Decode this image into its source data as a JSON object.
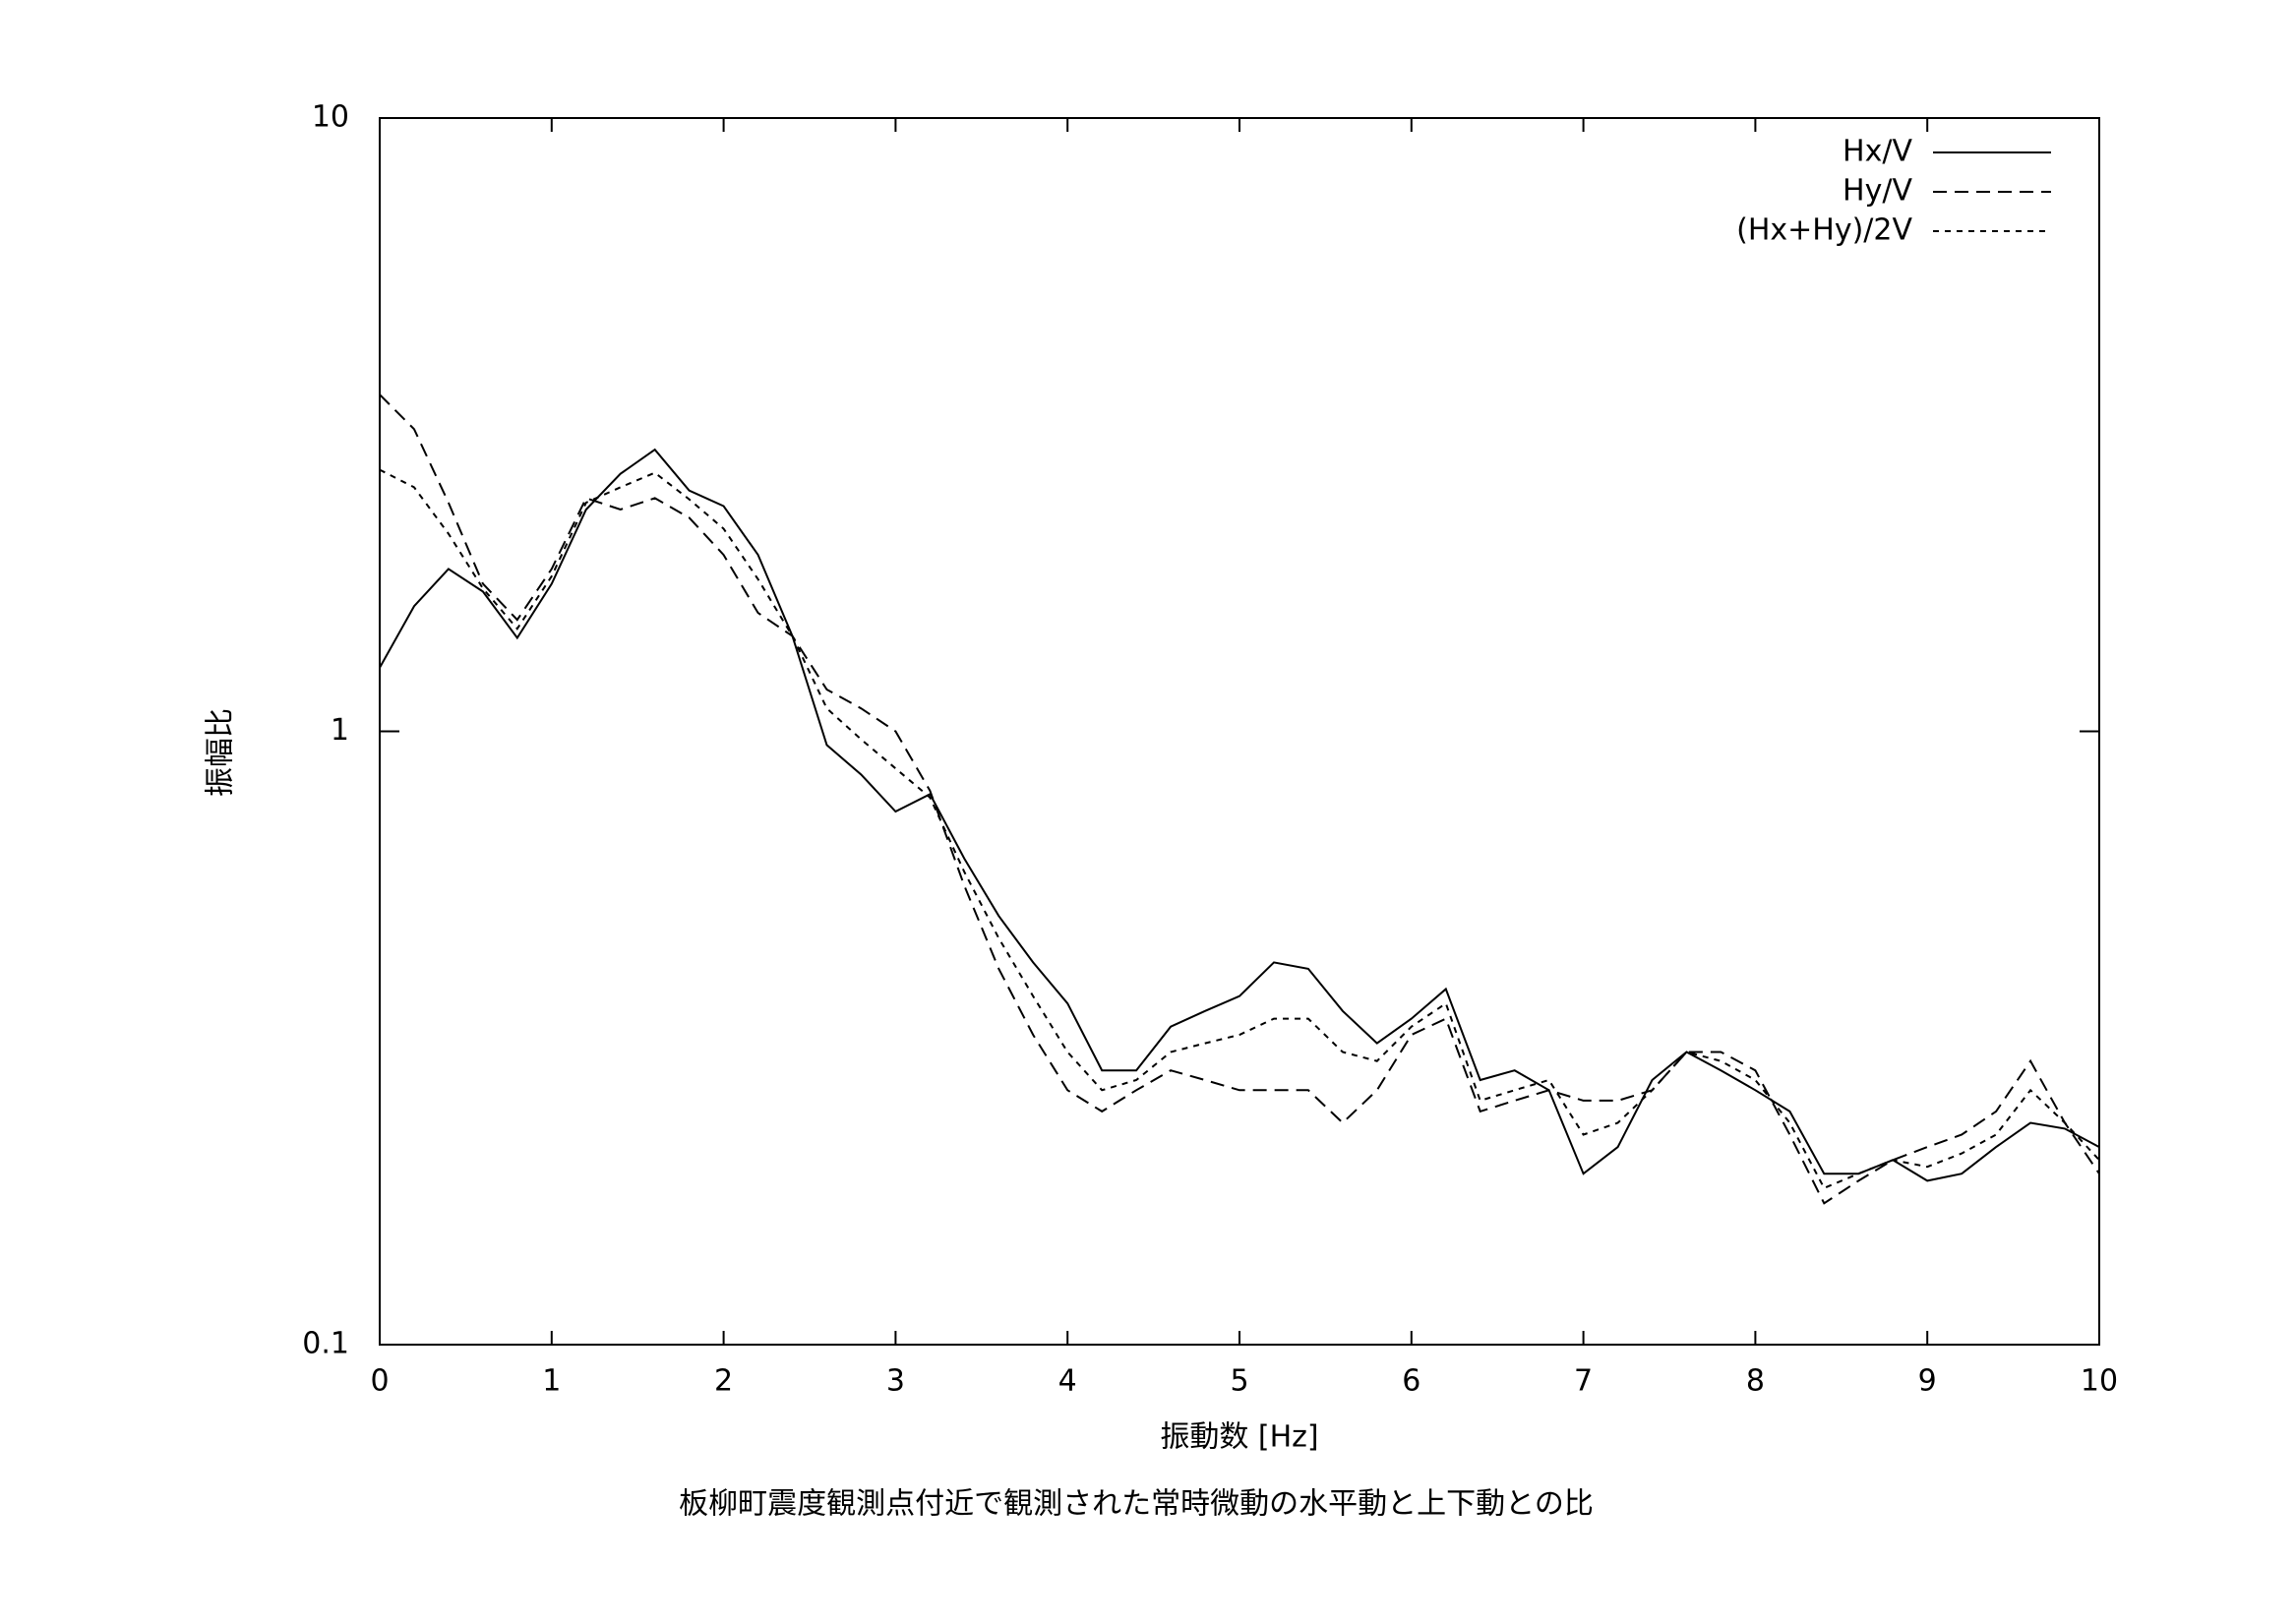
{
  "chart_data": {
    "type": "line",
    "title": "板柳町震度観測点付近で観測された常時微動の水平動と上下動との比",
    "x_label": "振動数 [Hz]",
    "y_label": "振幅比",
    "log_y": true,
    "grid": false,
    "legend": "top-right",
    "xlim": [
      0,
      10
    ],
    "xticks": [
      0,
      1,
      2,
      3,
      4,
      5,
      6,
      7,
      8,
      9,
      10
    ],
    "ylim": [
      0.1,
      10
    ],
    "yticks": [
      0.1,
      1,
      10
    ],
    "x": [
      0,
      0.2,
      0.4,
      0.6,
      0.8,
      1,
      1.2,
      1.4,
      1.6,
      1.8,
      2,
      2.2,
      2.4,
      2.6,
      2.8,
      3,
      3.2,
      3.4,
      3.6,
      3.8,
      4,
      4.2,
      4.4,
      4.6,
      4.8,
      5,
      5.2,
      5.4,
      5.6,
      5.8,
      6,
      6.2,
      6.4,
      6.6,
      6.8,
      7,
      7.2,
      7.4,
      7.6,
      7.8,
      8,
      8.2,
      8.4,
      8.6,
      8.8,
      9,
      9.2,
      9.4,
      9.6,
      9.8,
      10
    ],
    "series": [
      {
        "name": "Hx/V",
        "color": "#000000",
        "dash": "none",
        "values": [
          1.27,
          1.6,
          1.84,
          1.69,
          1.42,
          1.74,
          2.3,
          2.63,
          2.88,
          2.47,
          2.33,
          1.94,
          1.43,
          0.95,
          0.85,
          0.74,
          0.79,
          0.62,
          0.5,
          0.42,
          0.36,
          0.28,
          0.28,
          0.33,
          0.35,
          0.37,
          0.42,
          0.41,
          0.35,
          0.31,
          0.34,
          0.38,
          0.27,
          0.28,
          0.26,
          0.19,
          0.21,
          0.27,
          0.3,
          0.28,
          0.26,
          0.24,
          0.19,
          0.19,
          0.2,
          0.185,
          0.19,
          0.21,
          0.23,
          0.225,
          0.21
        ]
      },
      {
        "name": "Hy/V",
        "color": "#000000",
        "dash": "14,8",
        "values": [
          3.54,
          3.11,
          2.36,
          1.74,
          1.52,
          1.84,
          2.4,
          2.3,
          2.4,
          2.23,
          1.94,
          1.56,
          1.43,
          1.17,
          1.09,
          1.0,
          0.8,
          0.56,
          0.41,
          0.32,
          0.26,
          0.24,
          0.26,
          0.28,
          0.27,
          0.26,
          0.26,
          0.26,
          0.23,
          0.26,
          0.32,
          0.34,
          0.24,
          0.25,
          0.26,
          0.25,
          0.25,
          0.26,
          0.3,
          0.3,
          0.28,
          0.22,
          0.17,
          0.185,
          0.2,
          0.21,
          0.22,
          0.24,
          0.29,
          0.23,
          0.19
        ]
      },
      {
        "name": "(Hx+Hy)/2V",
        "color": "#000000",
        "dash": "6,6",
        "values": [
          2.67,
          2.5,
          2.1,
          1.71,
          1.47,
          1.79,
          2.36,
          2.5,
          2.64,
          2.39,
          2.14,
          1.77,
          1.43,
          1.09,
          0.97,
          0.87,
          0.78,
          0.59,
          0.46,
          0.37,
          0.3,
          0.26,
          0.27,
          0.3,
          0.31,
          0.32,
          0.34,
          0.34,
          0.3,
          0.29,
          0.33,
          0.36,
          0.25,
          0.26,
          0.27,
          0.22,
          0.23,
          0.26,
          0.3,
          0.29,
          0.27,
          0.23,
          0.18,
          0.19,
          0.2,
          0.195,
          0.205,
          0.22,
          0.26,
          0.23,
          0.2
        ]
      }
    ]
  }
}
